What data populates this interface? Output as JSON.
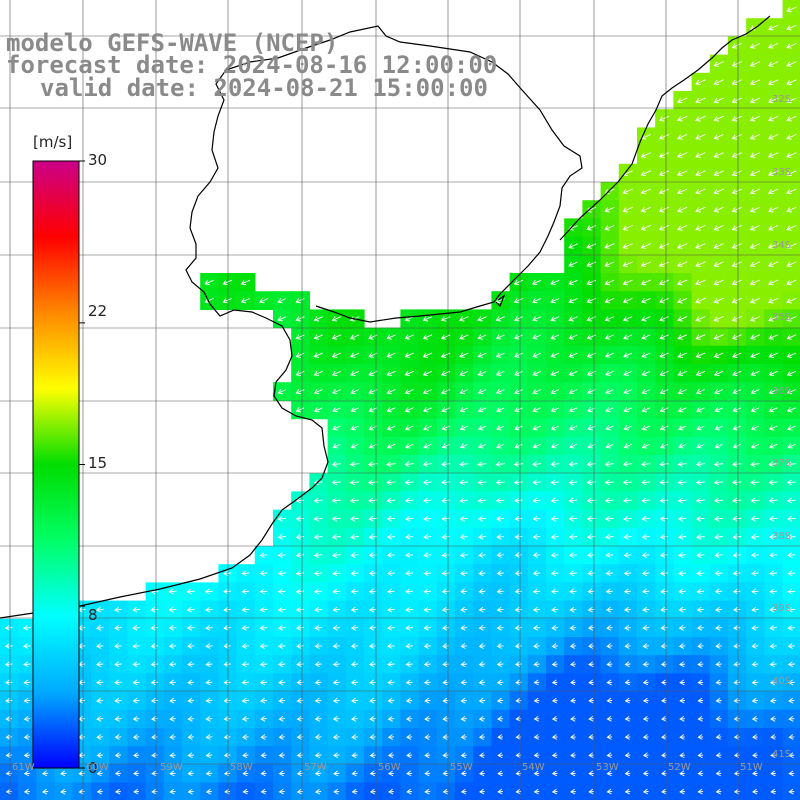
{
  "title": {
    "model": "modelo GEFS-WAVE (NCEP)",
    "forecast": "forecast date: 2024-08-16 12:00:00",
    "valid": "valid date: 2024-08-21 15:00:00"
  },
  "colorbar": {
    "unit": "[m/s]",
    "ticks": [
      "30",
      "22",
      "15",
      "8",
      "0"
    ],
    "tick_values": [
      30,
      22,
      15,
      8,
      0
    ],
    "min": 0,
    "max": 30,
    "stops": [
      "#0000ff",
      "#00aaff",
      "#00ffff",
      "#00ff66",
      "#00dd00",
      "#ffff00",
      "#ff8800",
      "#ff0000",
      "#cc0088"
    ]
  },
  "map": {
    "variable": "wind speed",
    "lat_labels": [
      "32S",
      "33S",
      "34S",
      "35S",
      "36S",
      "37S",
      "38S",
      "39S",
      "40S",
      "41S"
    ],
    "lon_labels": [
      "61W",
      "60W",
      "59W",
      "58W",
      "57W",
      "56W",
      "55W",
      "54W",
      "53W",
      "52W",
      "51W"
    ],
    "land_color": "#ffffff",
    "grid_color": "#555555",
    "coast_color": "#000000",
    "arrow_color": "#ffffff"
  }
}
